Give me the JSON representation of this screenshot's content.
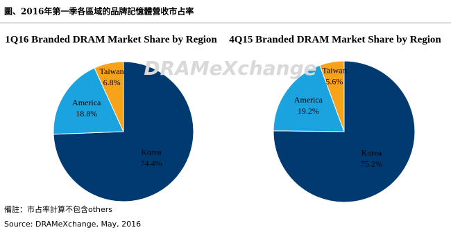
{
  "header": {
    "title": "圖、2016年第一季各區域的品牌記憶體營收市占率"
  },
  "watermark": "DRAMeXchange",
  "chart_data": [
    {
      "type": "pie",
      "title": "1Q16 Branded DRAM Market Share by Region",
      "categories": [
        "Korea",
        "America",
        "Taiwan"
      ],
      "values": [
        74.4,
        18.8,
        6.8
      ],
      "value_labels": [
        "74.4%",
        "18.8%",
        "6.8%"
      ],
      "colors": [
        "#003a70",
        "#1aa3de",
        "#f7a21b"
      ]
    },
    {
      "type": "pie",
      "title": "4Q15 Branded DRAM Market Share by Region",
      "categories": [
        "Korea",
        "America",
        "Taiwan"
      ],
      "values": [
        75.2,
        19.2,
        5.6
      ],
      "value_labels": [
        "75.2%",
        "19.2%",
        "5.6%"
      ],
      "colors": [
        "#003a70",
        "#1aa3de",
        "#f7a21b"
      ]
    }
  ],
  "footer": {
    "note": "備註：市占率計算不包含others",
    "source": "Source: DRAMeXchange, May, 2016"
  }
}
